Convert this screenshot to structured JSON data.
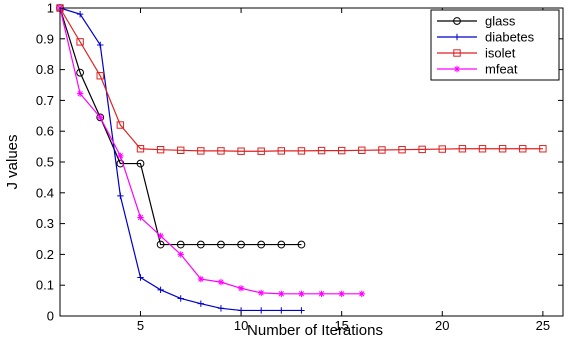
{
  "chart_data": {
    "type": "line",
    "title": "",
    "xlabel": "Number of Iterations",
    "ylabel": "J values",
    "xlim": [
      1,
      26
    ],
    "ylim": [
      0,
      1
    ],
    "xticks": [
      5,
      10,
      15,
      20,
      25
    ],
    "yticks": [
      0,
      0.1,
      0.2,
      0.3,
      0.4,
      0.5,
      0.6,
      0.7,
      0.8,
      0.9,
      1
    ],
    "grid": false,
    "legend_position": "top-right",
    "series": [
      {
        "name": "glass",
        "color": "#000000",
        "marker": "circle",
        "x": [
          1,
          2,
          3,
          4,
          5,
          6,
          7,
          8,
          9,
          10,
          11,
          12,
          13
        ],
        "y": [
          1.0,
          0.79,
          0.645,
          0.495,
          0.495,
          0.232,
          0.232,
          0.232,
          0.232,
          0.232,
          0.232,
          0.232,
          0.232
        ]
      },
      {
        "name": "diabetes",
        "color": "#0000cc",
        "marker": "plus",
        "x": [
          1,
          2,
          3,
          4,
          5,
          6,
          7,
          8,
          9,
          10,
          11,
          12,
          13
        ],
        "y": [
          1.0,
          0.98,
          0.88,
          0.39,
          0.125,
          0.085,
          0.057,
          0.04,
          0.025,
          0.018,
          0.018,
          0.018,
          0.018
        ]
      },
      {
        "name": "isolet",
        "color": "#dd2222",
        "marker": "square",
        "x": [
          1,
          2,
          3,
          4,
          5,
          6,
          7,
          8,
          9,
          10,
          11,
          12,
          13,
          14,
          15,
          16,
          17,
          18,
          19,
          20,
          21,
          22,
          23,
          24,
          25
        ],
        "y": [
          1.0,
          0.89,
          0.78,
          0.62,
          0.543,
          0.54,
          0.538,
          0.536,
          0.536,
          0.535,
          0.535,
          0.536,
          0.536,
          0.537,
          0.537,
          0.538,
          0.539,
          0.54,
          0.541,
          0.542,
          0.543,
          0.543,
          0.543,
          0.543,
          0.543
        ]
      },
      {
        "name": "mfeat",
        "color": "#ff00ff",
        "marker": "asterisk",
        "x": [
          1,
          2,
          3,
          4,
          5,
          6,
          7,
          8,
          9,
          10,
          11,
          12,
          13,
          14,
          15,
          16
        ],
        "y": [
          1.0,
          0.722,
          0.645,
          0.52,
          0.32,
          0.26,
          0.2,
          0.12,
          0.11,
          0.09,
          0.075,
          0.072,
          0.072,
          0.072,
          0.072,
          0.072
        ]
      }
    ]
  }
}
